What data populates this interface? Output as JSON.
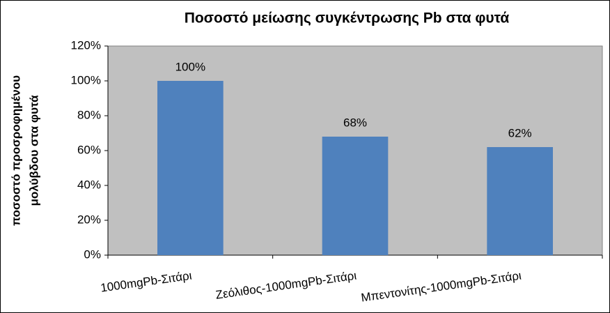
{
  "chart_data": {
    "type": "bar",
    "title": "Ποσοστό μείωσης συγκέντρωσης Pb στα φυτά",
    "y_label": [
      "ποσοστό προσροφημένου",
      "μολύβδου στα φυτά"
    ],
    "categories": [
      "1000mgPb-Σιτάρι",
      "Ζεόλιθος-1000mgPb-Σιτάρι",
      "Μπεντονίτης-1000mgPb-Σιτάρι"
    ],
    "values": [
      100,
      68,
      62
    ],
    "value_labels": [
      "100%",
      "68%",
      "62%"
    ],
    "color": "#4f81bd",
    "ylim": [
      0,
      120
    ],
    "yticks": [
      {
        "value": 0,
        "label": "0%"
      },
      {
        "value": 20,
        "label": "20%"
      },
      {
        "value": 40,
        "label": "40%"
      },
      {
        "value": 60,
        "label": "60%"
      },
      {
        "value": 80,
        "label": "80%"
      },
      {
        "value": 100,
        "label": "100%"
      },
      {
        "value": 120,
        "label": "120%"
      }
    ],
    "grid": false
  }
}
